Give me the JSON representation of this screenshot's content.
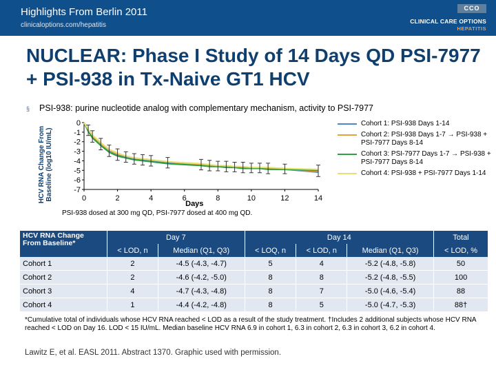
{
  "header": {
    "title": "Highlights From Berlin 2011",
    "url": "clinicaloptions.com/hepatitis",
    "logo_box": "CCO",
    "logo_line1": "CLINICAL CARE OPTIONS",
    "logo_line2": "HEPATITIS"
  },
  "slide_title": "NUCLEAR: Phase I Study of 14 Days QD PSI-7977 + PSI-938 in Tx-Naive GT1 HCV",
  "bullet": "PSI-938: purine nucleotide analog with complementary mechanism, activity to PSI-7977",
  "y_axis_title": "HCV RNA Change From Baseline (log10 IU/mL)",
  "dose_note": "PSI-938 dosed at 300 mg QD, PSI-7977 dosed at 400 mg QD.",
  "chart_data": {
    "type": "line",
    "xlabel": "Days",
    "ylabel": "HCV RNA Change From Baseline (log10 IU/mL)",
    "xlim": [
      0,
      14
    ],
    "ylim": [
      -7,
      0
    ],
    "x_ticks": [
      "0",
      "2",
      "4",
      "6",
      "8",
      "10",
      "12",
      "14"
    ],
    "y_ticks": [
      "0",
      "-1",
      "-2",
      "-3",
      "-4",
      "-5",
      "-6",
      "-7"
    ],
    "x": [
      0,
      0.25,
      0.5,
      1,
      1.5,
      2,
      2.5,
      3,
      3.5,
      4,
      5,
      7,
      7.5,
      8,
      8.5,
      9,
      9.5,
      10,
      10.5,
      11,
      12,
      14
    ],
    "series": [
      {
        "name": "Cohort 1: PSI-938 Days 1-14",
        "color": "#4a86c8",
        "values": [
          0,
          -0.9,
          -1.5,
          -2.3,
          -3.0,
          -3.4,
          -3.6,
          -3.8,
          -3.9,
          -4.0,
          -4.2,
          -4.4,
          -4.5,
          -4.6,
          -4.6,
          -4.7,
          -4.7,
          -4.7,
          -4.8,
          -4.8,
          -4.9,
          -5.2
        ]
      },
      {
        "name": "Cohort 2: PSI-938 Days 1-7 → PSI-938 + PSI-7977 Days 8-14",
        "color": "#e0a23a",
        "values": [
          0,
          -0.8,
          -1.4,
          -2.2,
          -2.9,
          -3.3,
          -3.5,
          -3.7,
          -3.8,
          -3.9,
          -4.1,
          -4.4,
          -4.5,
          -4.6,
          -4.6,
          -4.7,
          -4.7,
          -4.7,
          -4.8,
          -4.8,
          -4.9,
          -5.1
        ]
      },
      {
        "name": "Cohort 3: PSI-7977 Days 1-7 → PSI-938 + PSI-7977 Days 8-14",
        "color": "#2ea043",
        "values": [
          0,
          -0.9,
          -1.6,
          -2.4,
          -3.1,
          -3.5,
          -3.7,
          -3.9,
          -4.0,
          -4.1,
          -4.3,
          -4.5,
          -4.6,
          -4.6,
          -4.7,
          -4.7,
          -4.8,
          -4.8,
          -4.8,
          -4.9,
          -4.9,
          -5.0
        ]
      },
      {
        "name": "Cohort 4: PSI-938 + PSI-7977 Days 1-14",
        "color": "#e8e070",
        "values": [
          0,
          -0.7,
          -1.3,
          -2.1,
          -2.8,
          -3.2,
          -3.5,
          -3.7,
          -3.8,
          -3.9,
          -4.1,
          -4.3,
          -4.4,
          -4.5,
          -4.5,
          -4.6,
          -4.6,
          -4.7,
          -4.7,
          -4.7,
          -4.8,
          -4.9
        ]
      }
    ]
  },
  "table": {
    "corner": "HCV RNA Change From Baseline*",
    "group_headers": [
      "Day 7",
      "Day 14",
      "Total"
    ],
    "sub_headers": [
      "< LOD, n",
      "Median (Q1, Q3)",
      "< LOQ, n",
      "< LOD, n",
      "Median (Q1, Q3)",
      "< LOD, %"
    ],
    "rows": [
      {
        "cohort": "Cohort 1",
        "d7_lod": "2",
        "d7_median": "-4.5 (-4.3, -4.7)",
        "d14_loq": "5",
        "d14_lod": "4",
        "d14_median": "-5.2 (-4.8, -5.8)",
        "total": "50"
      },
      {
        "cohort": "Cohort 2",
        "d7_lod": "2",
        "d7_median": "-4.6 (-4.2, -5.0)",
        "d14_loq": "8",
        "d14_lod": "8",
        "d14_median": "-5.2 (-4.8, -5.5)",
        "total": "100"
      },
      {
        "cohort": "Cohort 3",
        "d7_lod": "4",
        "d7_median": "-4.7 (-4.3, -4.8)",
        "d14_loq": "8",
        "d14_lod": "7",
        "d14_median": "-5.0 (-4.6, -5.4)",
        "total": "88"
      },
      {
        "cohort": "Cohort 4",
        "d7_lod": "1",
        "d7_median": "-4.4 (-4.2, -4.8)",
        "d14_loq": "8",
        "d14_lod": "5",
        "d14_median": "-5.0 (-4.7, -5.3)",
        "total": "88†"
      }
    ]
  },
  "footnote": "*Cumulative total of individuals whose HCV RNA reached < LOD as a result of the study treatment. †Includes 2 additional subjects whose HCV RNA reached < LOD on Day 16. LOD < 15 IU/mL. Median baseline HCV RNA 6.9 in cohort 1, 6.3 in cohort 2, 6.3 in cohort 3, 6.2 in cohort 4.",
  "citation": "Lawitz E, et al. EASL 2011. Abstract 1370. Graphic used with permission."
}
